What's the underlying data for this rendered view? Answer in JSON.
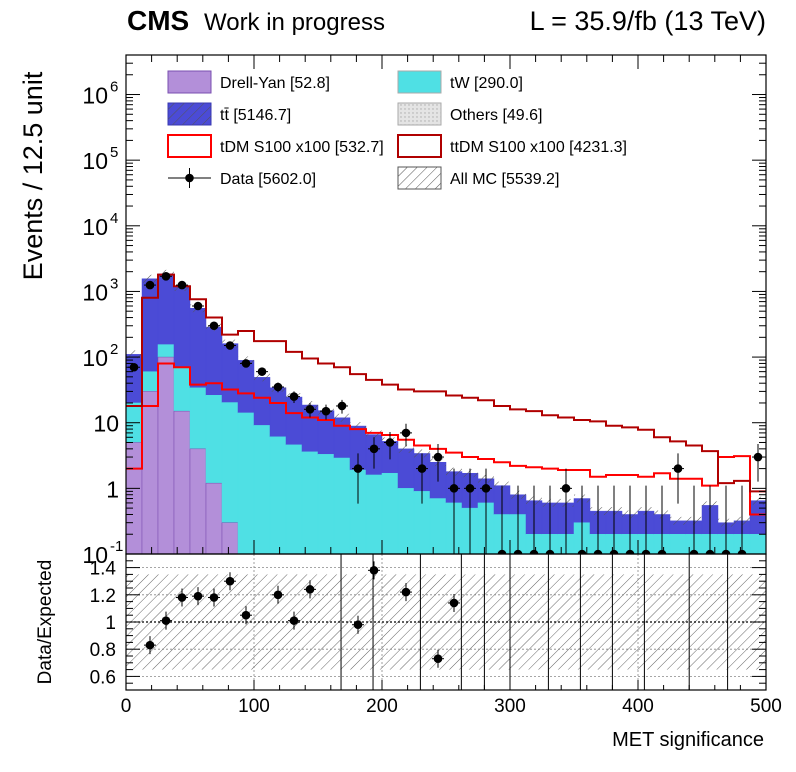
{
  "header": {
    "cms": "CMS",
    "tag": "Work in progress",
    "lumi": "L = 35.9/fb (13 TeV)"
  },
  "colors": {
    "drellyan": "#b38fd9",
    "tt": "#4b4bd6",
    "tw": "#4fe0e4",
    "others": "#d7d7d7",
    "tdm": "#ff0000",
    "ttdm": "#b00000"
  },
  "chart_data": {
    "type": "histogram",
    "xlabel": "MET significance",
    "ylabel": "Events / 12.5 unit",
    "ratio_ylabel": "Data/Expected",
    "xlim": [
      0,
      500
    ],
    "ylim_log": [
      0.1,
      4000000
    ],
    "ratio_ylim": [
      0.5,
      1.5
    ],
    "x_ticks": [
      "0",
      "100",
      "200",
      "300",
      "400",
      "500"
    ],
    "y_ticks": [
      "10^-1",
      "1",
      "10",
      "10^2",
      "10^3",
      "10^4",
      "10^5",
      "10^6"
    ],
    "ratio_ticks": [
      "0.6",
      "0.8",
      "1",
      "1.2",
      "1.4"
    ],
    "bin_edges_start": 0,
    "bin_width": 12.5,
    "legend": [
      {
        "key": "drellyan",
        "label": "Drell-Yan [52.8]",
        "style": "fill"
      },
      {
        "key": "tw",
        "label": "tW [290.0]",
        "style": "fill"
      },
      {
        "key": "tt",
        "label": "tt̄ [5146.7]",
        "style": "fill"
      },
      {
        "key": "others",
        "label": "Others [49.6]",
        "style": "fill"
      },
      {
        "key": "tdm",
        "label": "tDM S100 x100 [532.7]",
        "style": "line"
      },
      {
        "key": "ttdm",
        "label": "ttDM S100 x100 [4231.3]",
        "style": "line"
      },
      {
        "key": "data",
        "label": "Data [5602.0]",
        "style": "marker"
      },
      {
        "key": "allmc",
        "label": "All MC [5539.2]",
        "style": "hatch"
      }
    ],
    "series": [
      {
        "name": "Drell-Yan [52.8]",
        "values": [
          5,
          30,
          100,
          15,
          4,
          1.2,
          0.3,
          0.1,
          0.1,
          0.1,
          0.1,
          0.1,
          0.1,
          0.1,
          0.1,
          0.1,
          0.1,
          0.1,
          0.1,
          0.1,
          0.1,
          0.1,
          0.1,
          0.1,
          0.1,
          0.1,
          0.1,
          0.1,
          0.1,
          0.1,
          0.1,
          0.1,
          0.1,
          0.1,
          0.1,
          0.1,
          0.1,
          0.1,
          0.1,
          0.1
        ]
      },
      {
        "name": "tW [290.0]",
        "values": [
          15,
          30,
          55,
          55,
          30,
          25,
          20,
          14,
          9,
          6,
          4.5,
          3.5,
          3.2,
          2.8,
          1.8,
          1.5,
          1.6,
          0.9,
          0.8,
          0.6,
          0.5,
          0.4,
          0.5,
          0.3,
          0.3,
          0.1,
          0.1,
          0.1,
          0.2,
          0.1,
          0.1,
          0.1,
          0.1,
          0.1,
          0.1,
          0.1,
          0.1,
          0.1,
          0.1,
          0.1
        ]
      },
      {
        "name": "tt̄ [5146.7]",
        "values": [
          90,
          1500,
          1700,
          1100,
          520,
          260,
          140,
          75,
          40,
          28,
          20,
          15,
          12,
          9,
          7,
          5,
          3.5,
          3,
          2.5,
          1.8,
          1.2,
          1.2,
          0.8,
          0.7,
          0.4,
          0.45,
          0.4,
          0.4,
          0.4,
          0.25,
          0.25,
          0.2,
          0.25,
          0.2,
          0.12,
          0.12,
          0.35,
          0.1,
          0.12,
          0.45
        ]
      },
      {
        "name": "Others [49.6]",
        "values": [
          0.1,
          0.1,
          0.1,
          0.1,
          0.1,
          0.1,
          0.1,
          0.1,
          0.1,
          0.1,
          0.1,
          0.1,
          0.1,
          0.1,
          0.1,
          0.1,
          0.1,
          0.1,
          0.1,
          0.1,
          0.1,
          0.1,
          0.1,
          0.1,
          0.1,
          0.1,
          0.1,
          0.1,
          0.1,
          0.1,
          0.1,
          0.1,
          0.1,
          0.1,
          0.1,
          0.1,
          0.1,
          0.1,
          0.1,
          0.1
        ]
      },
      {
        "name": "tDM S100 x100 [532.7]",
        "values": [
          2,
          18,
          80,
          70,
          38,
          40,
          32,
          28,
          24,
          20,
          14,
          12,
          11,
          9,
          8,
          7,
          6.5,
          5.5,
          4.5,
          4,
          3.5,
          3,
          2.8,
          2.5,
          2.2,
          2.1,
          2,
          1.9,
          1.9,
          1.5,
          1.6,
          1.6,
          1.5,
          1.7,
          1.4,
          1.4,
          1.1,
          3.0,
          3.1,
          0.4
        ]
      },
      {
        "name": "ttDM S100 x100 [4231.3]",
        "values": [
          18,
          800,
          1800,
          1200,
          760,
          400,
          220,
          250,
          175,
          175,
          120,
          95,
          80,
          70,
          55,
          45,
          38,
          32,
          30,
          30,
          26,
          24,
          22,
          18,
          16,
          15,
          13,
          12,
          11,
          10.5,
          9,
          8.5,
          7.8,
          6,
          5.2,
          4.5,
          3.7,
          1.2,
          1.3,
          0.9
        ]
      },
      {
        "name": "Data [5602.0]",
        "values": [
          70,
          1250,
          1700,
          1250,
          600,
          300,
          150,
          80,
          60,
          35,
          25,
          16,
          15,
          18,
          2,
          4,
          5,
          7,
          2,
          3,
          1,
          1,
          1,
          0.1,
          0.1,
          0.1,
          0.1,
          1,
          0.1,
          0.1,
          0.1,
          0.1,
          0.1,
          0.1,
          2,
          0.1,
          0.1,
          0.1,
          0.1,
          3
        ]
      }
    ],
    "ratio_points": [
      {
        "x": 18.75,
        "y": 0.83
      },
      {
        "x": 31.25,
        "y": 1.01
      },
      {
        "x": 43.75,
        "y": 1.18
      },
      {
        "x": 56.25,
        "y": 1.19
      },
      {
        "x": 68.75,
        "y": 1.18
      },
      {
        "x": 81.25,
        "y": 1.3
      },
      {
        "x": 93.75,
        "y": 1.05
      },
      {
        "x": 118.75,
        "y": 1.2
      },
      {
        "x": 131.25,
        "y": 1.01
      },
      {
        "x": 143.75,
        "y": 1.24
      },
      {
        "x": 181.25,
        "y": 0.98
      },
      {
        "x": 193.75,
        "y": 1.38
      },
      {
        "x": 218.75,
        "y": 1.22
      },
      {
        "x": 243.75,
        "y": 0.73
      },
      {
        "x": 256.25,
        "y": 1.14
      }
    ]
  }
}
